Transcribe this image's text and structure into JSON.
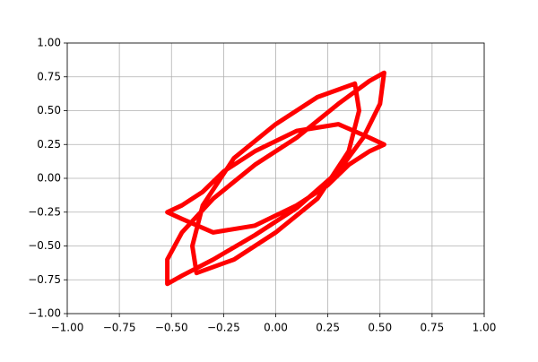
{
  "chart_data": {
    "type": "line",
    "x": [
      0.52,
      0.5,
      0.42,
      0.3,
      0.1,
      -0.1,
      -0.3,
      -0.45,
      -0.52,
      -0.52,
      -0.45,
      -0.3,
      -0.1,
      0.1,
      0.3,
      0.45,
      0.52,
      null,
      -0.52,
      -0.45,
      -0.3,
      -0.1,
      0.1,
      0.25,
      0.35,
      0.45,
      0.52,
      0.45,
      0.3,
      0.1,
      -0.1,
      -0.25,
      -0.35,
      -0.45,
      -0.52,
      null,
      0.38,
      0.4,
      0.35,
      0.2,
      0,
      -0.2,
      -0.38,
      -0.4,
      -0.35,
      -0.2,
      0,
      0.2,
      0.38
    ],
    "series": [
      {
        "color": "#ff0000",
        "values": [
          0.78,
          0.55,
          0.3,
          0.05,
          -0.22,
          -0.42,
          -0.6,
          -0.72,
          -0.78,
          -0.6,
          -0.4,
          -0.15,
          0.1,
          0.3,
          0.55,
          0.72,
          0.78,
          null,
          -0.25,
          -0.3,
          -0.4,
          -0.35,
          -0.2,
          -0.05,
          0.1,
          0.2,
          0.25,
          0.3,
          0.4,
          0.35,
          0.2,
          0.05,
          -0.1,
          -0.2,
          -0.25,
          null,
          0.7,
          0.5,
          0.2,
          -0.15,
          -0.4,
          -0.6,
          -0.7,
          -0.5,
          -0.2,
          0.15,
          0.4,
          0.6,
          0.7
        ]
      }
    ],
    "xlim": [
      -1,
      1
    ],
    "ylim": [
      -1,
      1
    ],
    "xticks": [
      {
        "value": -1,
        "label": "−1.00"
      },
      {
        "value": -0.75,
        "label": "−0.75"
      },
      {
        "value": -0.5,
        "label": "−0.50"
      },
      {
        "value": -0.25,
        "label": "−0.25"
      },
      {
        "value": 0,
        "label": "0.00"
      },
      {
        "value": 0.25,
        "label": "0.25"
      },
      {
        "value": 0.5,
        "label": "0.50"
      },
      {
        "value": 0.75,
        "label": "0.75"
      },
      {
        "value": 1,
        "label": "1.00"
      }
    ],
    "yticks": [
      {
        "value": -1,
        "label": "−1.00"
      },
      {
        "value": -0.75,
        "label": "−0.75"
      },
      {
        "value": -0.5,
        "label": "−0.50"
      },
      {
        "value": -0.25,
        "label": "−0.25"
      },
      {
        "value": 0,
        "label": "0.00"
      },
      {
        "value": 0.25,
        "label": "0.25"
      },
      {
        "value": 0.5,
        "label": "0.50"
      },
      {
        "value": 0.75,
        "label": "0.75"
      },
      {
        "value": 1,
        "label": "1.00"
      }
    ],
    "grid": true
  }
}
